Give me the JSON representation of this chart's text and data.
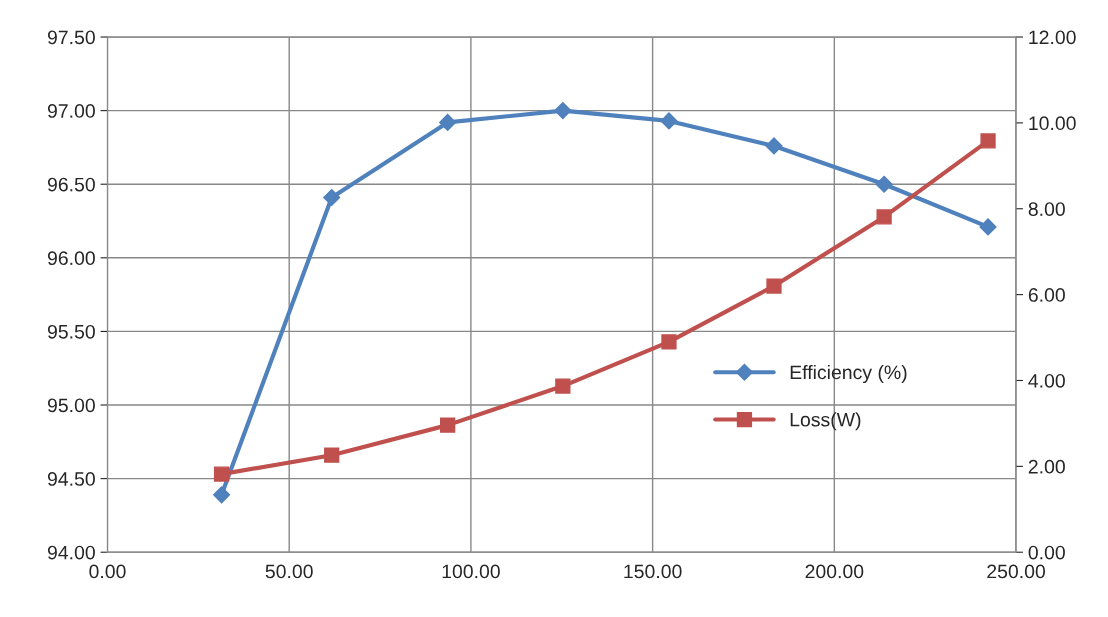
{
  "chart_data": {
    "type": "line",
    "x": [
      31.4,
      61.7,
      93.6,
      125.3,
      154.5,
      183.4,
      213.7,
      242.3
    ],
    "series": [
      {
        "name": "Efficiency (%)",
        "color": "#4f81bd",
        "marker": "diamond",
        "values": [
          94.39,
          96.41,
          96.92,
          97.0,
          96.93,
          96.76,
          96.5,
          96.21
        ]
      },
      {
        "name": "Loss(W)",
        "color": "#c0504d",
        "marker": "square",
        "axis": "y2",
        "values": [
          1.82,
          2.26,
          2.96,
          3.87,
          4.9,
          6.2,
          7.81,
          9.58
        ]
      }
    ],
    "xlim": [
      0,
      250
    ],
    "xticks": [
      {
        "value": 0,
        "label": "0.00"
      },
      {
        "value": 50,
        "label": "50.00"
      },
      {
        "value": 100,
        "label": "100.00"
      },
      {
        "value": 150,
        "label": "150.00"
      },
      {
        "value": 200,
        "label": "200.00"
      },
      {
        "value": 250,
        "label": "250.00"
      }
    ],
    "ylim": [
      94,
      97.5
    ],
    "yticks": [
      {
        "value": 94,
        "label": "94.00"
      },
      {
        "value": 94.5,
        "label": "94.50"
      },
      {
        "value": 95,
        "label": "95.00"
      },
      {
        "value": 95.5,
        "label": "95.50"
      },
      {
        "value": 96,
        "label": "96.00"
      },
      {
        "value": 96.5,
        "label": "96.50"
      },
      {
        "value": 97,
        "label": "97.00"
      },
      {
        "value": 97.5,
        "label": "97.50"
      }
    ],
    "y2lim": [
      0,
      12
    ],
    "y2ticks": [
      {
        "value": 0,
        "label": "0.00"
      },
      {
        "value": 2,
        "label": "2.00"
      },
      {
        "value": 4,
        "label": "4.00"
      },
      {
        "value": 6,
        "label": "6.00"
      },
      {
        "value": 8,
        "label": "8.00"
      },
      {
        "value": 10,
        "label": "10.00"
      },
      {
        "value": 12,
        "label": "12.00"
      }
    ],
    "grid": true,
    "legend": "right",
    "line_style": "solid"
  }
}
